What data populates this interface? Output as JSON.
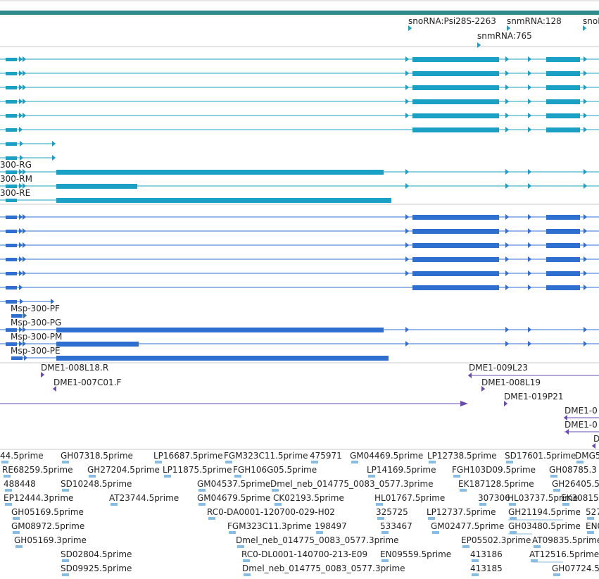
{
  "colors": {
    "gene_bar": "#2e8a8a",
    "transcript_cyan": "#1aa0c4",
    "transcript_blue": "#2f6fd0",
    "cdna_purple": "#6a4cb0",
    "est_light_blue": "#86bde6",
    "track_divider": "#c8c8c8"
  },
  "snorna_track": {
    "labels": [
      "snoRNA:Psi28S-2263",
      "snmRNA:128",
      "snoR",
      "snmRNA:765"
    ]
  },
  "transcripts_cyan": {
    "labels": [
      "300-RG",
      "300-RM",
      "300-RE"
    ]
  },
  "transcripts_blue": {
    "labels": [
      "Msp-300-PF",
      "Msp-300-PG",
      "Msp-300-PM",
      "Msp-300-PE"
    ]
  },
  "cdna_track": {
    "labels": [
      "DME1-008L18.R",
      "DME1-007C01.F",
      "DME1-009L23",
      "DME1-008L19",
      "DME1-019P21",
      "DME1-0",
      "DME1-0",
      "D"
    ]
  },
  "est_track": {
    "labels": [
      "44.5prime",
      "GH07318.5prime",
      "LP16687.5prime",
      "FGM323C11.5prime",
      "475971",
      "GM04469.5prime",
      "LP12738.5prime",
      "SD17601.5prime",
      "DMG5",
      "RE68259.5prime",
      "GH27204.5prime",
      "LP11875.5prime",
      "FGH106G05.5prime",
      "LP14169.5prime",
      "FGH103D09.5prime",
      "GH08785.3",
      "488448",
      "SD10248.5prime",
      "GM04537.5prime",
      "Dmel_neb_014775_0083_0577.3prime",
      "EK187128.5prime",
      "GH26405.5",
      "EP12444.3prime",
      "AT23744.5prime",
      "GM04679.5prime",
      "CK02193.5prime",
      "HL01767.5prime",
      "307306",
      "HL03737.5prime",
      "EK30815",
      "GH05169.5prime",
      "RC0-DA0001-120700-029-H02",
      "325725",
      "LP12737.5prime",
      "GH21194.5prime",
      "527",
      "GM08972.5prime",
      "FGM323C11.3prime",
      "198497",
      "533467",
      "GM02477.5prime",
      "GH03480.5prime",
      "EN0",
      "GH05169.3prime",
      "Dmel_neb_014775_0083_0577.3prime",
      "EP05502.3prime",
      "AT09835.5prime",
      "SD02804.5prime",
      "RC0-DL0001-140700-213-E09",
      "EN09559.5prime",
      "413186",
      "AT12516.5prime",
      "SD09925.5prime",
      "Dmel_neb_014775_0083_0577.3prime",
      "413185",
      "GH07724.5"
    ]
  }
}
